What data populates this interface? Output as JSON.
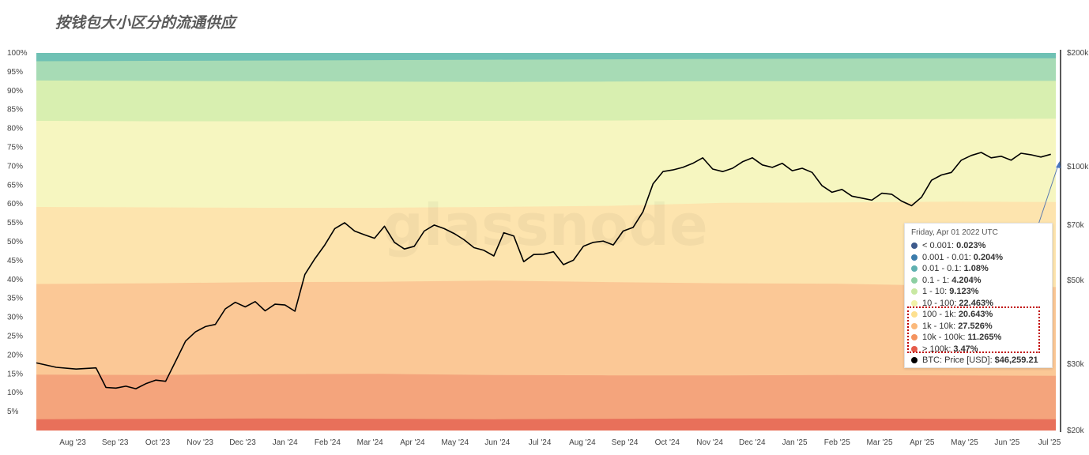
{
  "title": "按钱包大小区分的流通供应",
  "watermark": "glassnode",
  "chart_data": {
    "type": "area",
    "stacked": true,
    "percent_stacked": true,
    "x_axis": {
      "labels": [
        "Aug '23",
        "Sep '23",
        "Oct '23",
        "Nov '23",
        "Dec '23",
        "Jan '24",
        "Feb '24",
        "Mar '24",
        "Apr '24",
        "May '24",
        "Jun '24",
        "Jul '24",
        "Aug '24",
        "Sep '24",
        "Oct '24",
        "Nov '24",
        "Dec '24",
        "Jan '25",
        "Feb '25",
        "Mar '25",
        "Apr '25",
        "May '25",
        "Jun '25",
        "Jul '25"
      ],
      "range": [
        2023.5,
        2025.55
      ]
    },
    "y_axis_left": {
      "labels": [
        "5%",
        "10%",
        "15%",
        "20%",
        "25%",
        "30%",
        "35%",
        "40%",
        "45%",
        "50%",
        "55%",
        "60%",
        "65%",
        "70%",
        "75%",
        "80%",
        "85%",
        "90%",
        "95%",
        "100%"
      ],
      "range": [
        0,
        100
      ]
    },
    "y_axis_right": {
      "scale": "log",
      "labels": [
        "$20k",
        "$30k",
        "$50k",
        "$70k",
        "$100k",
        "$200k"
      ],
      "values": [
        20000,
        30000,
        50000,
        70000,
        100000,
        200000
      ],
      "range": [
        20000,
        200000
      ]
    },
    "bands": [
      {
        "name": "> 100k",
        "color": "#e8705a",
        "cumulative_top": [
          3.0,
          3.1,
          3.2,
          3.1,
          3.0,
          3.1,
          3.2,
          3.2,
          3.1,
          3.0
        ]
      },
      {
        "name": "10k - 100k",
        "color": "#f4a47c",
        "cumulative_top": [
          14.8,
          14.7,
          14.9,
          15.0,
          14.7,
          14.6,
          14.6,
          14.7,
          14.6,
          14.5
        ]
      },
      {
        "name": "1k - 10k",
        "color": "#fbc896",
        "cumulative_top": [
          38.8,
          39.0,
          39.3,
          39.4,
          39.7,
          39.3,
          39.0,
          38.9,
          38.3,
          38.0
        ]
      },
      {
        "name": "100 - 1k",
        "color": "#fde4ae",
        "cumulative_top": [
          59.2,
          59.1,
          59.0,
          59.0,
          59.2,
          59.5,
          60.3,
          60.4,
          60.6,
          60.5
        ]
      },
      {
        "name": "10 - 100",
        "color": "#f6f6c0",
        "cumulative_top": [
          82.0,
          81.9,
          81.9,
          82.0,
          82.0,
          82.1,
          82.3,
          82.4,
          82.5,
          82.6
        ]
      },
      {
        "name": "1 - 10",
        "color": "#d8efb0",
        "cumulative_top": [
          92.7,
          92.6,
          92.5,
          92.4,
          92.3,
          92.4,
          92.5,
          92.5,
          92.6,
          92.6
        ]
      },
      {
        "name": "0.1 - 1",
        "color": "#a7dbb5",
        "cumulative_top": [
          97.8,
          97.9,
          98.0,
          98.1,
          98.2,
          98.3,
          98.4,
          98.5,
          98.6,
          98.6
        ]
      },
      {
        "name": "0.01 - 0.1",
        "color": "#6fc1b4",
        "cumulative_top": [
          100,
          100,
          100,
          100,
          100,
          100,
          100,
          100,
          100,
          100
        ]
      }
    ],
    "band_x": [
      2023.5,
      2023.73,
      2023.96,
      2024.19,
      2024.42,
      2024.65,
      2024.88,
      2025.11,
      2025.34,
      2025.55
    ],
    "price_series": {
      "name": "BTC: Price [USD]",
      "color": "#000000",
      "x": [
        2023.5,
        2023.54,
        2023.58,
        2023.62,
        2023.64,
        2023.66,
        2023.68,
        2023.7,
        2023.72,
        2023.74,
        2023.76,
        2023.78,
        2023.8,
        2023.82,
        2023.84,
        2023.86,
        2023.88,
        2023.9,
        2023.92,
        2023.94,
        2023.96,
        2023.98,
        2024.0,
        2024.02,
        2024.04,
        2024.06,
        2024.08,
        2024.1,
        2024.12,
        2024.14,
        2024.16,
        2024.18,
        2024.2,
        2024.22,
        2024.24,
        2024.26,
        2024.28,
        2024.3,
        2024.32,
        2024.34,
        2024.36,
        2024.38,
        2024.4,
        2024.42,
        2024.44,
        2024.46,
        2024.48,
        2024.5,
        2024.52,
        2024.54,
        2024.56,
        2024.58,
        2024.6,
        2024.62,
        2024.64,
        2024.66,
        2024.68,
        2024.7,
        2024.72,
        2024.74,
        2024.76,
        2024.78,
        2024.8,
        2024.82,
        2024.84,
        2024.86,
        2024.88,
        2024.9,
        2024.92,
        2024.94,
        2024.96,
        2024.98,
        2025.0,
        2025.02,
        2025.04,
        2025.06,
        2025.08,
        2025.1,
        2025.12,
        2025.14,
        2025.16,
        2025.18,
        2025.2,
        2025.22,
        2025.24,
        2025.26,
        2025.28,
        2025.3,
        2025.32,
        2025.34,
        2025.36,
        2025.38,
        2025.4,
        2025.42,
        2025.44,
        2025.46,
        2025.48,
        2025.5,
        2025.52,
        2025.54
      ],
      "y": [
        30200,
        29400,
        29100,
        29300,
        26000,
        25900,
        26200,
        25800,
        26600,
        27200,
        27000,
        30500,
        34500,
        36500,
        37700,
        38200,
        42000,
        43700,
        42500,
        43900,
        41500,
        43200,
        43000,
        41400,
        51800,
        57000,
        62000,
        68500,
        71000,
        67500,
        66000,
        64600,
        69500,
        63000,
        60500,
        61500,
        67500,
        70000,
        68500,
        66500,
        64000,
        61000,
        60000,
        58000,
        66800,
        65500,
        56000,
        58500,
        58600,
        59500,
        55000,
        56500,
        61500,
        63000,
        63500,
        62000,
        67500,
        69000,
        76000,
        90000,
        97000,
        98000,
        99500,
        102000,
        105500,
        98500,
        97000,
        99000,
        103000,
        105500,
        101000,
        99500,
        102000,
        97500,
        99000,
        96500,
        89000,
        85500,
        87000,
        83500,
        82500,
        81500,
        85000,
        84500,
        81000,
        78800,
        83000,
        92000,
        95000,
        96500,
        104000,
        107000,
        109000,
        105500,
        106500,
        104000,
        108500,
        107500,
        106000,
        107800
      ]
    }
  },
  "tooltip": {
    "date": "Friday, Apr 01 2022 UTC",
    "rows": [
      {
        "label": "< 0.001: ",
        "value": "0.023%",
        "color": "#3d5a8c"
      },
      {
        "label": "0.001 - 0.01: ",
        "value": "0.204%",
        "color": "#3b7bab"
      },
      {
        "label": "0.01 - 0.1: ",
        "value": "1.08%",
        "color": "#5fb0b0"
      },
      {
        "label": "0.1 - 1: ",
        "value": "4.204%",
        "color": "#8ccfa2"
      },
      {
        "label": "1 - 10: ",
        "value": "9.123%",
        "color": "#c8e8a2"
      },
      {
        "label": "10 - 100: ",
        "value": "22.463%",
        "color": "#f2f2a8"
      },
      {
        "label": "100 - 1k: ",
        "value": "20.643%",
        "color": "#fde08f"
      },
      {
        "label": "1k - 10k: ",
        "value": "27.526%",
        "color": "#fbb97b"
      },
      {
        "label": "10k - 100k: ",
        "value": "11.265%",
        "color": "#f4935f"
      },
      {
        "label": "> 100k: ",
        "value": "3.47%",
        "color": "#e55b4a"
      },
      {
        "label": "BTC: Price [USD]: ",
        "value": "$46,259.21",
        "color": "#000000"
      }
    ]
  }
}
